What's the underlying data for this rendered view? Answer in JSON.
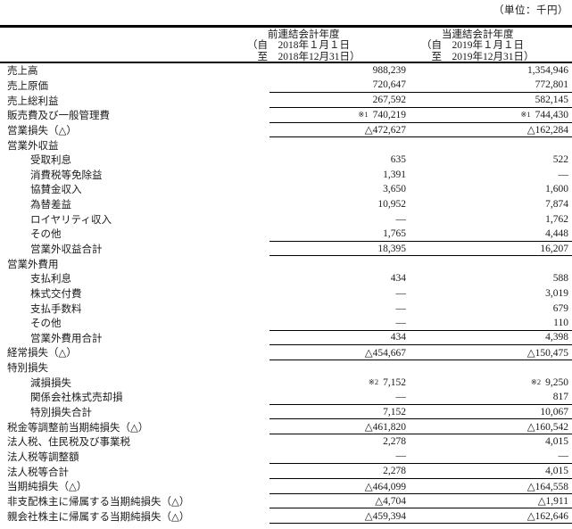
{
  "unit_label": "（単位：千円）",
  "table": {
    "columns": [
      {
        "title": "前連結会計年度",
        "period_from": "（自　2018年１月１日",
        "period_to": "　至　2018年12月31日）"
      },
      {
        "title": "当連結会計年度",
        "period_from": "（自　2019年１月１日",
        "period_to": "　至　2019年12月31日）"
      }
    ],
    "rows": [
      {
        "label": "売上高",
        "indent": 0,
        "v1": "988,239",
        "v2": "1,354,946",
        "rule": false
      },
      {
        "label": "売上原価",
        "indent": 0,
        "v1": "720,647",
        "v2": "772,801",
        "rule": true
      },
      {
        "label": "売上総利益",
        "indent": 0,
        "v1": "267,592",
        "v2": "582,145",
        "rule": true
      },
      {
        "label": "販売費及び一般管理費",
        "indent": 0,
        "n1": "※1",
        "v1": "740,219",
        "n2": "※1",
        "v2": "744,430",
        "rule": true
      },
      {
        "label": "営業損失（△）",
        "indent": 0,
        "v1": "△472,627",
        "v2": "△162,284",
        "rule": true
      },
      {
        "label": "営業外収益",
        "indent": 0,
        "v1": "",
        "v2": "",
        "rule": false
      },
      {
        "label": "受取利息",
        "indent": 1,
        "v1": "635",
        "v2": "522",
        "rule": false
      },
      {
        "label": "消費税等免除益",
        "indent": 1,
        "v1": "1,391",
        "v2": "―",
        "rule": false
      },
      {
        "label": "協賛金収入",
        "indent": 1,
        "v1": "3,650",
        "v2": "1,600",
        "rule": false
      },
      {
        "label": "為替差益",
        "indent": 1,
        "v1": "10,952",
        "v2": "7,874",
        "rule": false
      },
      {
        "label": "ロイヤリティ収入",
        "indent": 1,
        "v1": "―",
        "v2": "1,762",
        "rule": false
      },
      {
        "label": "その他",
        "indent": 1,
        "v1": "1,765",
        "v2": "4,448",
        "rule": true
      },
      {
        "label": "営業外収益合計",
        "indent": 1,
        "v1": "18,395",
        "v2": "16,207",
        "rule": true
      },
      {
        "label": "営業外費用",
        "indent": 0,
        "v1": "",
        "v2": "",
        "rule": false
      },
      {
        "label": "支払利息",
        "indent": 1,
        "v1": "434",
        "v2": "588",
        "rule": false
      },
      {
        "label": "株式交付費",
        "indent": 1,
        "v1": "―",
        "v2": "3,019",
        "rule": false
      },
      {
        "label": "支払手数料",
        "indent": 1,
        "v1": "―",
        "v2": "679",
        "rule": false
      },
      {
        "label": "その他",
        "indent": 1,
        "v1": "―",
        "v2": "110",
        "rule": true
      },
      {
        "label": "営業外費用合計",
        "indent": 1,
        "v1": "434",
        "v2": "4,398",
        "rule": true
      },
      {
        "label": "経常損失（△）",
        "indent": 0,
        "v1": "△454,667",
        "v2": "△150,475",
        "rule": true
      },
      {
        "label": "特別損失",
        "indent": 0,
        "v1": "",
        "v2": "",
        "rule": false
      },
      {
        "label": "減損損失",
        "indent": 1,
        "n1": "※2",
        "v1": "7,152",
        "n2": "※2",
        "v2": "9,250",
        "rule": false
      },
      {
        "label": "関係会社株式売却損",
        "indent": 1,
        "v1": "―",
        "v2": "817",
        "rule": true
      },
      {
        "label": "特別損失合計",
        "indent": 1,
        "v1": "7,152",
        "v2": "10,067",
        "rule": true
      },
      {
        "label": "税金等調整前当期純損失（△）",
        "indent": 0,
        "v1": "△461,820",
        "v2": "△160,542",
        "rule": true
      },
      {
        "label": "法人税、住民税及び事業税",
        "indent": 0,
        "v1": "2,278",
        "v2": "4,015",
        "rule": false
      },
      {
        "label": "法人税等調整額",
        "indent": 0,
        "v1": "―",
        "v2": "―",
        "rule": true
      },
      {
        "label": "法人税等合計",
        "indent": 0,
        "v1": "2,278",
        "v2": "4,015",
        "rule": true
      },
      {
        "label": "当期純損失（△）",
        "indent": 0,
        "v1": "△464,099",
        "v2": "△164,558",
        "rule": true
      },
      {
        "label": "非支配株主に帰属する当期純損失（△）",
        "indent": 0,
        "v1": "△4,704",
        "v2": "△1,911",
        "rule": true
      },
      {
        "label": "親会社株主に帰属する当期純損失（△）",
        "indent": 0,
        "v1": "△459,394",
        "v2": "△162,646",
        "rule": true
      }
    ]
  }
}
